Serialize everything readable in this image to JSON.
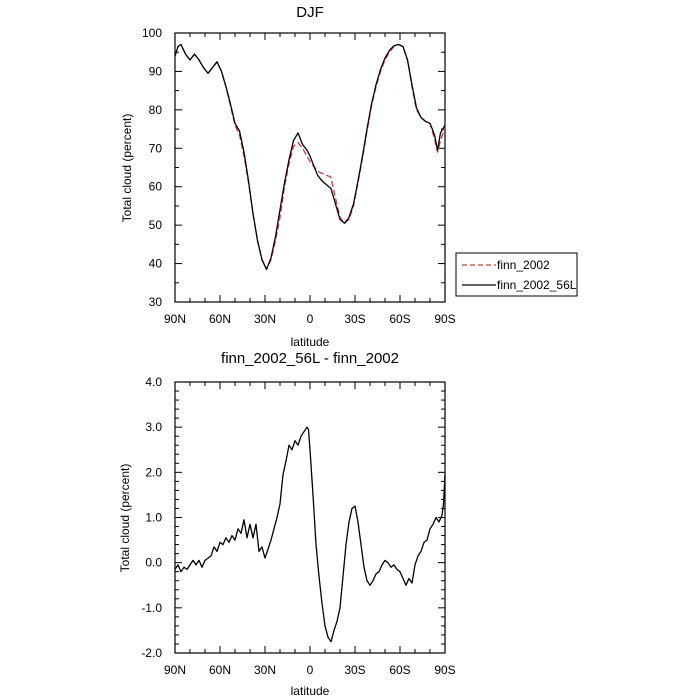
{
  "chart_data": [
    {
      "type": "line",
      "title": "DJF",
      "xlabel": "latitude",
      "ylabel": "Total cloud (percent)",
      "xlim": [
        -90,
        90
      ],
      "ylim": [
        30,
        100
      ],
      "x_ticks": [
        -90,
        -60,
        -30,
        0,
        30,
        60,
        90
      ],
      "x_tick_labels": [
        "90N",
        "60N",
        "30N",
        "0",
        "30S",
        "60S",
        "90S"
      ],
      "y_ticks": [
        30,
        40,
        50,
        60,
        70,
        80,
        90,
        100
      ],
      "y_tick_labels": [
        "30",
        "40",
        "50",
        "60",
        "70",
        "80",
        "90",
        "100"
      ],
      "grid": false,
      "legend_position": "right-outside",
      "series": [
        {
          "name": "finn_2002",
          "color": "#e03030",
          "dash": "dashed",
          "x": [
            -90,
            -88,
            -86,
            -83,
            -80,
            -77,
            -74,
            -71,
            -68,
            -65,
            -62,
            -59,
            -56,
            -53,
            -50,
            -47,
            -44,
            -41,
            -38,
            -35,
            -32,
            -29,
            -26,
            -23,
            -20,
            -17,
            -14,
            -11,
            -8,
            -5,
            -2,
            0,
            2,
            5,
            8,
            11,
            14,
            17,
            20,
            23,
            26,
            29,
            32,
            35,
            38,
            41,
            44,
            47,
            50,
            53,
            56,
            59,
            62,
            65,
            68,
            71,
            74,
            77,
            80,
            83,
            85,
            87,
            90
          ],
          "y": [
            94,
            96.5,
            97,
            94.5,
            93,
            94.5,
            93,
            91,
            89.5,
            91,
            92.5,
            90,
            86,
            81,
            76,
            73.5,
            68,
            61,
            53,
            46,
            41,
            38.5,
            41,
            46,
            52,
            60,
            66,
            70.5,
            71.5,
            70,
            68,
            66.5,
            65.5,
            64,
            63.5,
            63,
            62.5,
            57,
            52,
            50.5,
            51.5,
            55,
            61,
            67.5,
            74.5,
            81,
            86,
            90,
            93,
            95,
            96.5,
            97,
            96.5,
            93,
            86,
            80,
            78,
            77,
            76.5,
            72.5,
            69,
            72,
            75.5
          ]
        },
        {
          "name": "finn_2002_56L",
          "color": "#000000",
          "dash": "solid",
          "x": [
            -90,
            -88,
            -86,
            -83,
            -80,
            -77,
            -74,
            -71,
            -68,
            -65,
            -62,
            -59,
            -56,
            -53,
            -50,
            -47,
            -44,
            -41,
            -38,
            -35,
            -32,
            -29,
            -26,
            -23,
            -20,
            -17,
            -14,
            -11,
            -8,
            -5,
            -2,
            0,
            2,
            5,
            8,
            11,
            14,
            17,
            20,
            23,
            26,
            29,
            32,
            35,
            38,
            41,
            44,
            47,
            50,
            53,
            56,
            59,
            62,
            65,
            68,
            71,
            74,
            77,
            80,
            83,
            85,
            87,
            90
          ],
          "y": [
            94,
            96.5,
            97,
            94.5,
            93,
            94.5,
            93,
            91,
            89.5,
            91,
            92.5,
            90,
            86,
            81.5,
            76.5,
            74.5,
            69,
            61.5,
            53,
            46,
            41,
            38.5,
            41.5,
            47,
            54,
            61,
            67,
            72,
            74,
            71,
            69.5,
            68,
            66,
            63,
            61.5,
            60.5,
            59.5,
            55.5,
            51.5,
            50.5,
            52,
            55.5,
            61.5,
            68,
            75,
            81.5,
            86.5,
            90.5,
            93.5,
            95.5,
            96.7,
            97,
            96.5,
            93,
            86.5,
            80.5,
            78,
            77,
            76.5,
            73.5,
            69.5,
            74,
            76
          ]
        }
      ]
    },
    {
      "type": "line",
      "title": "finn_2002_56L - finn_2002",
      "xlabel": "latitude",
      "ylabel": "Total cloud (percent)",
      "xlim": [
        -90,
        90
      ],
      "ylim": [
        -2,
        4
      ],
      "x_ticks": [
        -90,
        -60,
        -30,
        0,
        30,
        60,
        90
      ],
      "x_tick_labels": [
        "90N",
        "60N",
        "30N",
        "0",
        "30S",
        "60S",
        "90S"
      ],
      "y_ticks": [
        -2,
        -1,
        0,
        1,
        2,
        3,
        4
      ],
      "y_tick_labels": [
        "-2.0",
        "-1.0",
        "0.0",
        "1.0",
        "2.0",
        "3.0",
        "4.0"
      ],
      "grid": false,
      "series": [
        {
          "color": "#000000",
          "dash": "solid",
          "x": [
            -90,
            -88,
            -86,
            -84,
            -82,
            -80,
            -78,
            -76,
            -74,
            -72,
            -70,
            -68,
            -66,
            -64,
            -62,
            -60,
            -58,
            -56,
            -54,
            -52,
            -50,
            -48,
            -46,
            -44,
            -42,
            -40,
            -38,
            -36,
            -34,
            -32,
            -30,
            -28,
            -26,
            -24,
            -22,
            -20,
            -18,
            -16,
            -14,
            -12,
            -10,
            -8,
            -6,
            -4,
            -2,
            -1,
            0,
            2,
            4,
            6,
            8,
            10,
            12,
            14,
            16,
            18,
            20,
            22,
            24,
            26,
            28,
            30,
            32,
            34,
            36,
            38,
            40,
            42,
            44,
            46,
            48,
            50,
            52,
            54,
            56,
            58,
            60,
            62,
            64,
            66,
            68,
            70,
            72,
            74,
            76,
            78,
            80,
            82,
            84,
            86,
            88,
            89,
            90
          ],
          "y": [
            -0.15,
            -0.05,
            -0.2,
            -0.1,
            -0.15,
            -0.05,
            0.05,
            -0.05,
            0.05,
            -0.1,
            0.05,
            0.1,
            0.15,
            0.35,
            0.25,
            0.45,
            0.4,
            0.55,
            0.45,
            0.6,
            0.5,
            0.75,
            0.65,
            0.95,
            0.55,
            0.85,
            0.55,
            0.85,
            0.25,
            0.35,
            0.1,
            0.3,
            0.5,
            0.75,
            1.0,
            1.3,
            1.95,
            2.25,
            2.6,
            2.5,
            2.7,
            2.6,
            2.8,
            2.9,
            3.0,
            2.95,
            2.5,
            1.5,
            0.4,
            -0.3,
            -0.9,
            -1.4,
            -1.65,
            -1.75,
            -1.5,
            -1.3,
            -1.0,
            -0.3,
            0.4,
            0.9,
            1.2,
            1.25,
            0.9,
            0.4,
            -0.1,
            -0.4,
            -0.5,
            -0.4,
            -0.25,
            -0.2,
            -0.05,
            0.05,
            0.0,
            -0.1,
            -0.05,
            -0.15,
            -0.2,
            -0.35,
            -0.5,
            -0.35,
            -0.45,
            -0.05,
            0.15,
            0.25,
            0.45,
            0.5,
            0.75,
            0.85,
            1.0,
            0.9,
            1.05,
            1.3,
            1.95
          ]
        }
      ]
    }
  ],
  "legend": {
    "items": [
      {
        "label": "finn_2002",
        "color": "#e03030",
        "dash": "dashed"
      },
      {
        "label": "finn_2002_56L",
        "color": "#000000",
        "dash": "solid"
      }
    ]
  }
}
